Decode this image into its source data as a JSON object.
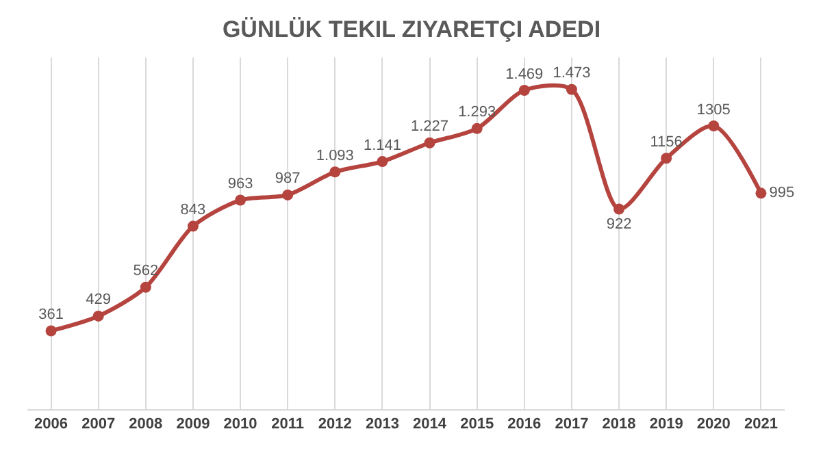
{
  "chart_data": {
    "type": "line",
    "title": "GÜNLÜK TEKIL ZIYARETÇI ADEDI",
    "categories": [
      "2006",
      "2007",
      "2008",
      "2009",
      "2010",
      "2011",
      "2012",
      "2013",
      "2014",
      "2015",
      "2016",
      "2017",
      "2018",
      "2019",
      "2020",
      "2021"
    ],
    "series": [
      {
        "color": "#b5443f",
        "values": [
          361,
          429,
          562,
          843,
          963,
          987,
          1093,
          1141,
          1227,
          1293,
          1469,
          1473,
          922,
          1156,
          1305,
          995
        ],
        "value_labels": [
          "361",
          "429",
          "562",
          "843",
          "963",
          "987",
          "1.093",
          "1.141",
          "1.227",
          "1.293",
          "1.469",
          "1.473",
          "922",
          "1156",
          "1305",
          "995"
        ]
      }
    ],
    "grid": "x",
    "marker": "circle",
    "line_style": "solid",
    "tick_labels": "x"
  }
}
